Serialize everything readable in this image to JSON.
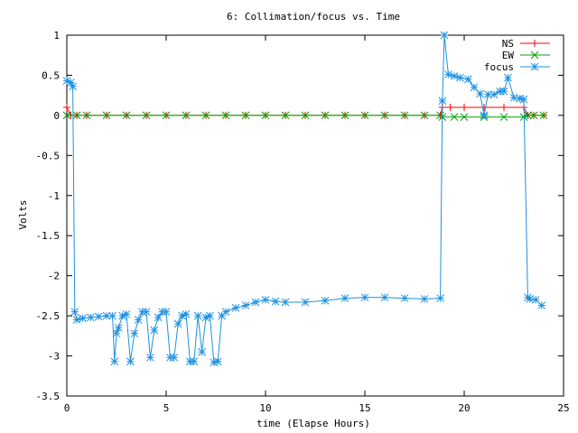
{
  "chart_data": {
    "type": "line",
    "title": "6: Collimation/focus vs. Time",
    "xlabel": "time (Elapse Hours)",
    "ylabel": "Volts",
    "xlim": [
      0,
      25
    ],
    "ylim": [
      -3.5,
      1
    ],
    "xticks": [
      0,
      5,
      10,
      15,
      20,
      25
    ],
    "yticks": [
      1,
      0.5,
      0,
      -0.5,
      -1,
      -1.5,
      -2,
      -2.5,
      -3,
      -3.5
    ],
    "xtick_labels": [
      "0",
      "5",
      "10",
      "15",
      "20",
      "25"
    ],
    "ytick_labels": [
      "1",
      "0.5",
      "0",
      "-0.5",
      "-1",
      "-1.5",
      "-2",
      "-2.5",
      "-3",
      "-3.5"
    ],
    "grid": false,
    "legend_position": "top-right",
    "series": [
      {
        "name": "NS",
        "color": "#ff0000",
        "marker": "plus",
        "x": [
          0,
          0.2,
          0.5,
          1,
          2,
          3,
          4,
          5,
          6,
          7,
          8,
          9,
          10,
          11,
          12,
          13,
          14,
          15,
          16,
          17,
          18,
          18.8,
          18.9,
          19.3,
          20,
          21,
          22,
          23,
          23.2,
          23.5,
          24
        ],
        "y": [
          0.1,
          0.0,
          0.0,
          0.0,
          0.0,
          0.0,
          0.0,
          0.0,
          0.0,
          0.0,
          0.0,
          0.0,
          0.0,
          0.0,
          0.0,
          0.0,
          0.0,
          0.0,
          0.0,
          0.0,
          0.0,
          0.0,
          0.1,
          0.1,
          0.1,
          0.1,
          0.1,
          0.1,
          0.0,
          0.0,
          0.0
        ]
      },
      {
        "name": "EW",
        "color": "#00a000",
        "marker": "cross",
        "x": [
          0,
          0.5,
          1,
          2,
          3,
          4,
          5,
          6,
          7,
          8,
          9,
          10,
          11,
          12,
          13,
          14,
          15,
          16,
          17,
          18,
          18.8,
          18.9,
          19.5,
          20,
          21,
          22,
          23,
          23.2,
          23.5,
          24
        ],
        "y": [
          0.0,
          0.0,
          0.0,
          0.0,
          0.0,
          0.0,
          0.0,
          0.0,
          0.0,
          0.0,
          0.0,
          0.0,
          0.0,
          0.0,
          0.0,
          0.0,
          0.0,
          0.0,
          0.0,
          0.0,
          0.0,
          -0.02,
          -0.02,
          -0.02,
          -0.02,
          -0.02,
          -0.02,
          0.0,
          0.0,
          0.0
        ]
      },
      {
        "name": "focus",
        "color": "#1e90e0",
        "marker": "star",
        "x": [
          0,
          0.2,
          0.3,
          0.4,
          0.5,
          0.8,
          1.2,
          1.6,
          2.0,
          2.3,
          2.4,
          2.5,
          2.6,
          2.8,
          3.0,
          3.2,
          3.4,
          3.6,
          3.8,
          4.0,
          4.2,
          4.4,
          4.6,
          4.8,
          5.0,
          5.2,
          5.4,
          5.6,
          5.8,
          6.0,
          6.2,
          6.4,
          6.6,
          6.8,
          7.0,
          7.2,
          7.4,
          7.6,
          7.8,
          8.0,
          8.5,
          9.0,
          9.5,
          10.0,
          10.5,
          11.0,
          12.0,
          13.0,
          14.0,
          15.0,
          16.0,
          17.0,
          18.0,
          18.8,
          18.9,
          19.0,
          19.2,
          19.5,
          19.8,
          20.2,
          20.5,
          20.8,
          21.0,
          21.2,
          21.5,
          21.8,
          22.0,
          22.2,
          22.5,
          22.8,
          23.0,
          23.2,
          23.3,
          23.6,
          23.9
        ],
        "y": [
          0.43,
          0.41,
          0.36,
          -2.45,
          -2.55,
          -2.53,
          -2.52,
          -2.51,
          -2.5,
          -2.5,
          -3.07,
          -2.72,
          -2.65,
          -2.5,
          -2.48,
          -3.07,
          -2.72,
          -2.55,
          -2.45,
          -2.45,
          -3.02,
          -2.68,
          -2.52,
          -2.45,
          -2.45,
          -3.02,
          -3.02,
          -2.6,
          -2.5,
          -2.48,
          -3.07,
          -3.07,
          -2.5,
          -2.95,
          -2.52,
          -2.5,
          -3.08,
          -3.07,
          -2.5,
          -2.45,
          -2.4,
          -2.37,
          -2.33,
          -2.3,
          -2.32,
          -2.33,
          -2.33,
          -2.31,
          -2.28,
          -2.27,
          -2.27,
          -2.28,
          -2.29,
          -2.28,
          0.18,
          1.0,
          0.51,
          0.49,
          0.47,
          0.45,
          0.35,
          0.27,
          0.0,
          0.26,
          0.26,
          0.3,
          0.3,
          0.47,
          0.22,
          0.21,
          0.2,
          -2.27,
          -2.29,
          -2.3,
          -2.37
        ]
      }
    ]
  }
}
